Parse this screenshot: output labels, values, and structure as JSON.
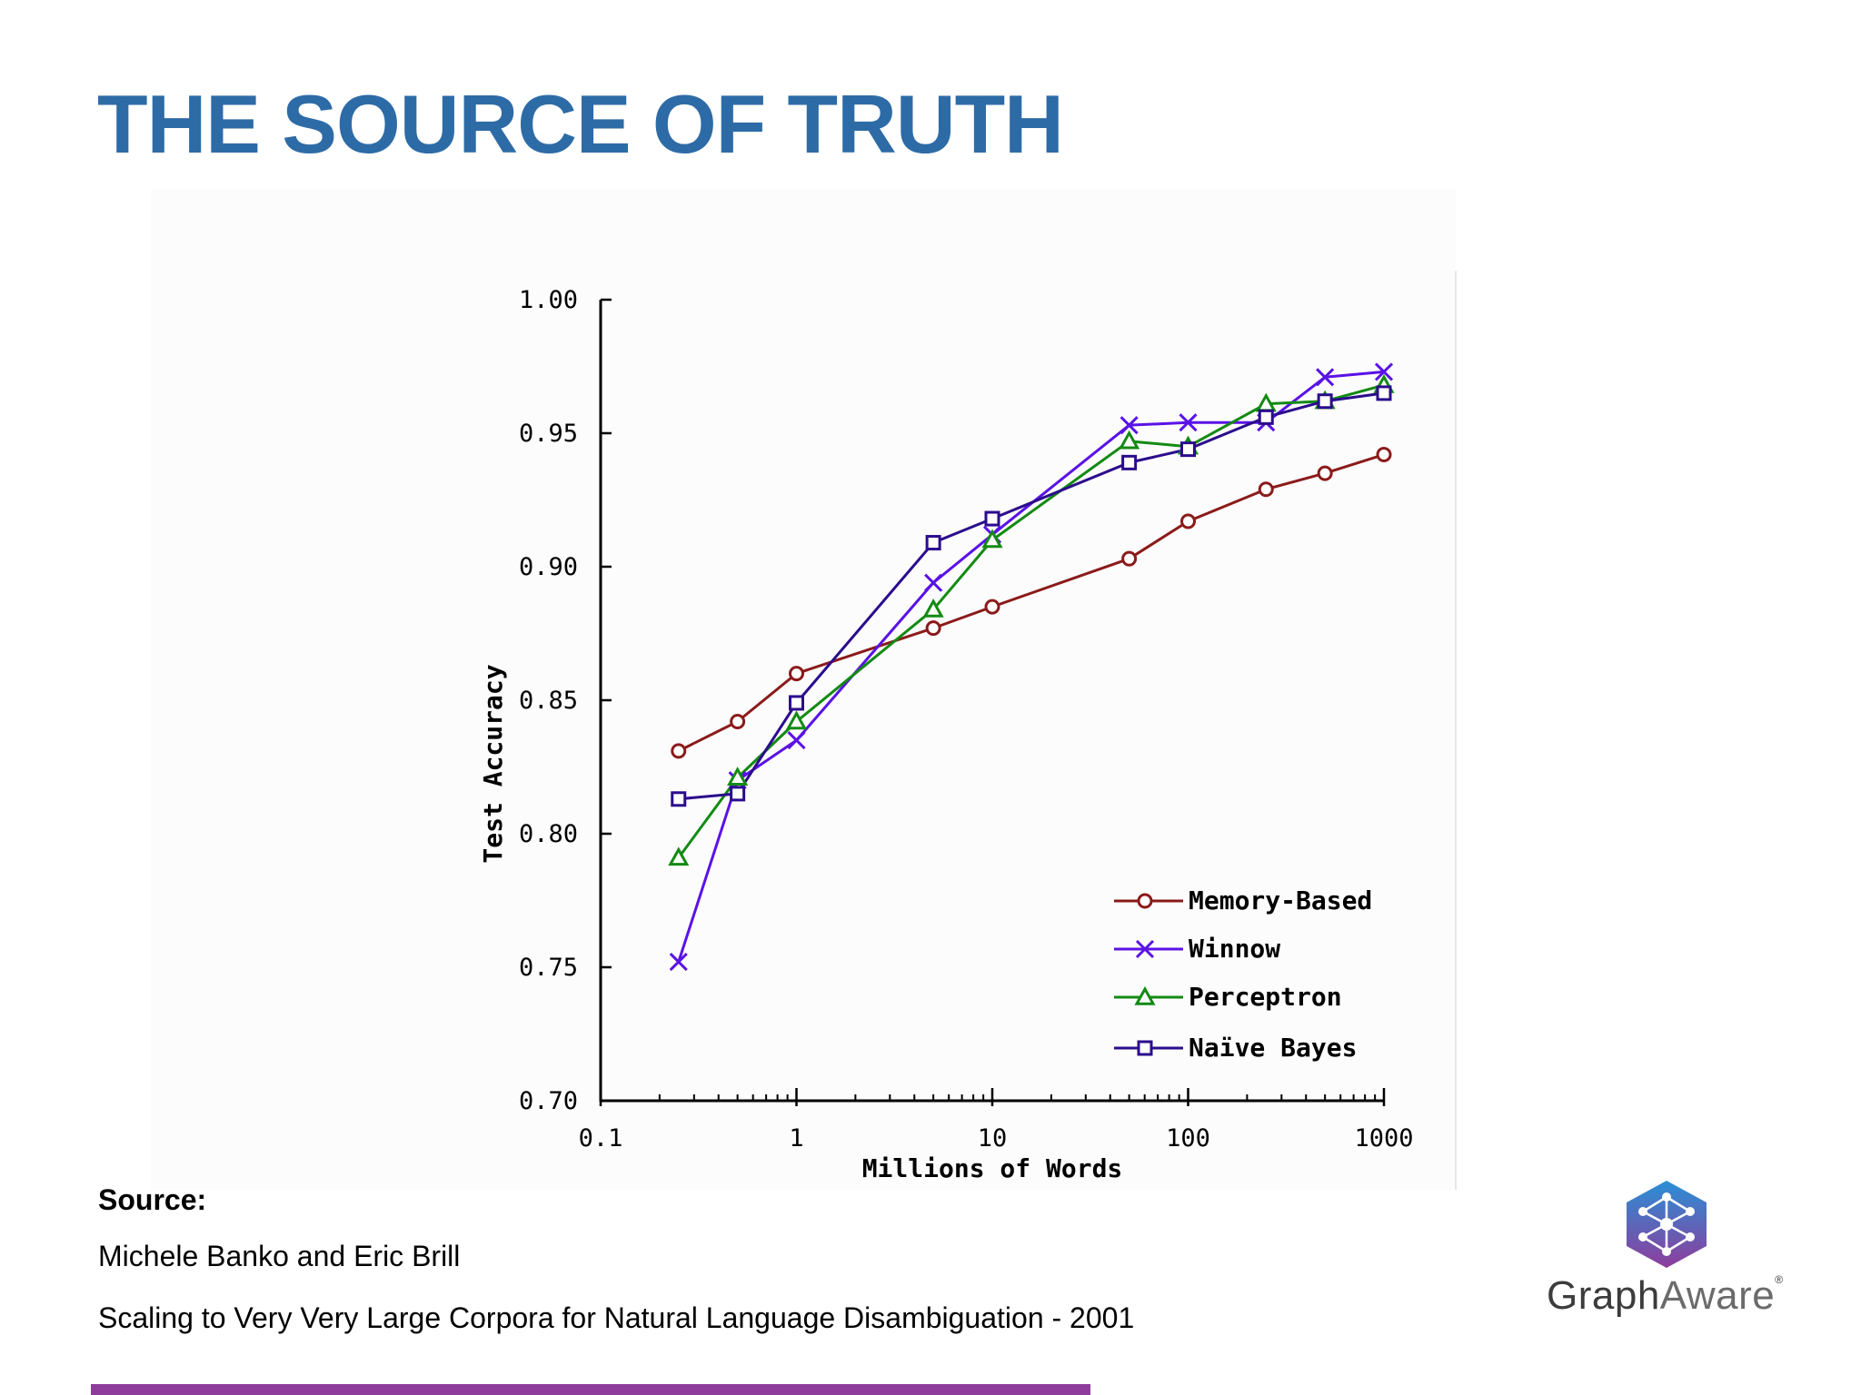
{
  "slide": {
    "title": "THE SOURCE OF TRUTH"
  },
  "source": {
    "heading": "Source:",
    "authors": "Michele Banko and Eric Brill",
    "paper": "Scaling to Very Very Large Corpora for Natural Language Disambiguation - 2001"
  },
  "brand": {
    "name_bold": "Graph",
    "name_thin": "Aware",
    "registered_mark": "®",
    "logo_icon": "network-hexagon-icon",
    "colors": {
      "hex_top": "#2a8fd6",
      "hex_bottom": "#8e3d9c",
      "footer_bar": "#8e3d9c"
    }
  },
  "chart_data": {
    "type": "line",
    "title": "",
    "xlabel": "Millions of Words",
    "ylabel": "Test Accuracy",
    "xscale": "log",
    "xlim": [
      0.1,
      1000
    ],
    "ylim": [
      0.7,
      1.0
    ],
    "x_ticks": [
      0.1,
      1,
      10,
      100,
      1000
    ],
    "x_tick_labels": [
      "0.1",
      "1",
      "10",
      "100",
      "1000"
    ],
    "y_ticks": [
      0.7,
      0.75,
      0.8,
      0.85,
      0.9,
      0.95,
      1.0
    ],
    "y_tick_labels": [
      "0.70",
      "0.75",
      "0.80",
      "0.85",
      "0.90",
      "0.95",
      "1.00"
    ],
    "grid": false,
    "legend_position": "bottom-right",
    "series": [
      {
        "name": "Memory-Based",
        "color": "#8b1a1a",
        "marker": "circle",
        "points": [
          [
            0.25,
            0.831
          ],
          [
            0.5,
            0.842
          ],
          [
            1,
            0.86
          ],
          [
            5,
            0.877
          ],
          [
            10,
            0.885
          ],
          [
            50,
            0.903
          ],
          [
            100,
            0.917
          ],
          [
            250,
            0.929
          ],
          [
            500,
            0.935
          ],
          [
            1000,
            0.942
          ]
        ]
      },
      {
        "name": "Winnow",
        "color": "#5a12e6",
        "marker": "x",
        "points": [
          [
            0.25,
            0.752
          ],
          [
            0.5,
            0.82
          ],
          [
            1,
            0.835
          ],
          [
            5,
            0.894
          ],
          [
            10,
            0.912
          ],
          [
            50,
            0.953
          ],
          [
            100,
            0.954
          ],
          [
            250,
            0.954
          ],
          [
            500,
            0.971
          ],
          [
            1000,
            0.973
          ]
        ]
      },
      {
        "name": "Perceptron",
        "color": "#138a13",
        "marker": "triangle",
        "points": [
          [
            0.25,
            0.791
          ],
          [
            0.5,
            0.821
          ],
          [
            1,
            0.842
          ],
          [
            5,
            0.884
          ],
          [
            10,
            0.91
          ],
          [
            50,
            0.947
          ],
          [
            100,
            0.945
          ],
          [
            250,
            0.961
          ],
          [
            500,
            0.962
          ],
          [
            1000,
            0.968
          ]
        ]
      },
      {
        "name": "Naïve Bayes",
        "color": "#2b0c8c",
        "marker": "square",
        "points": [
          [
            0.25,
            0.813
          ],
          [
            0.5,
            0.815
          ],
          [
            1,
            0.849
          ],
          [
            5,
            0.909
          ],
          [
            10,
            0.918
          ],
          [
            50,
            0.939
          ],
          [
            100,
            0.944
          ],
          [
            250,
            0.956
          ],
          [
            500,
            0.962
          ],
          [
            1000,
            0.965
          ]
        ]
      }
    ]
  }
}
